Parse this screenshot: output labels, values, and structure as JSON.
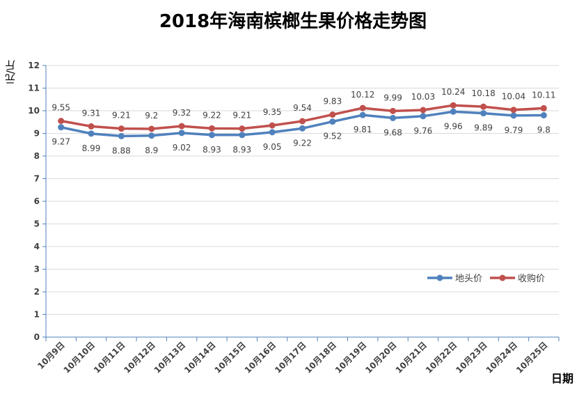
{
  "chart_data": {
    "type": "line",
    "title": "2018年海南槟榔生果价格走势图",
    "ylabel": "元/斤",
    "xlabel": "日期",
    "ylim": [
      0,
      12
    ],
    "yticks": [
      0,
      1,
      2,
      3,
      4,
      5,
      6,
      7,
      8,
      9,
      10,
      11,
      12
    ],
    "categories": [
      "10月9日",
      "10月10日",
      "10月11日",
      "10月12日",
      "10月13日",
      "10月14日",
      "10月15日",
      "10月16日",
      "10月17日",
      "10月18日",
      "10月19日",
      "10月20日",
      "10月21日",
      "10月22日",
      "10月23日",
      "10月24日",
      "10月25日"
    ],
    "grid": true,
    "legend_position": "right",
    "series": [
      {
        "name": "地头价",
        "color": "#4f81bd",
        "values": [
          9.27,
          8.99,
          8.88,
          8.9,
          9.02,
          8.93,
          8.93,
          9.05,
          9.22,
          9.52,
          9.81,
          9.68,
          9.76,
          9.96,
          9.89,
          9.79,
          9.8
        ]
      },
      {
        "name": "收购价",
        "color": "#c0504d",
        "values": [
          9.55,
          9.31,
          9.21,
          9.2,
          9.32,
          9.22,
          9.21,
          9.35,
          9.54,
          9.83,
          10.12,
          9.99,
          10.03,
          10.24,
          10.18,
          10.04,
          10.11
        ]
      }
    ]
  }
}
